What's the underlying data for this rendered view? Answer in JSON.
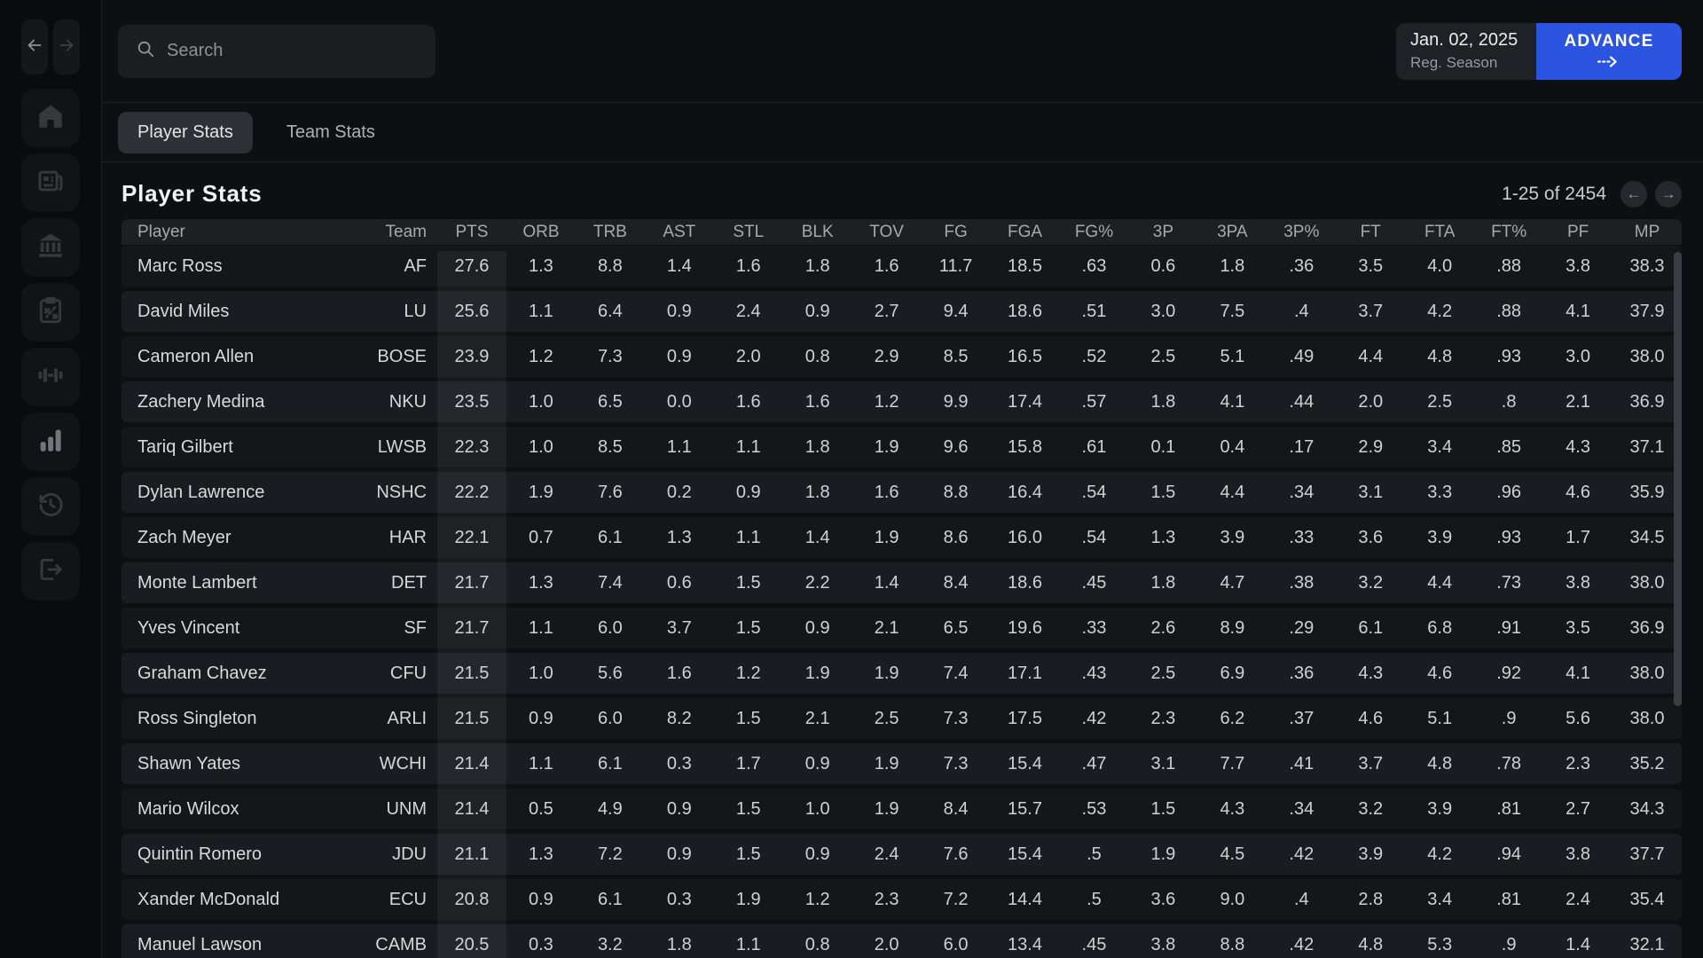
{
  "topbar": {
    "search_placeholder": "Search",
    "date": "Jan. 02, 2025",
    "phase": "Reg. Season",
    "advance_label": "ADVANCE"
  },
  "sidebar": {
    "icons": [
      "back-arrow",
      "forward-arrow",
      "home",
      "news",
      "league",
      "playbook",
      "training",
      "stats",
      "history",
      "exit"
    ]
  },
  "tabs": [
    {
      "label": "Player Stats",
      "active": true
    },
    {
      "label": "Team Stats",
      "active": false
    }
  ],
  "page": {
    "title": "Player Stats",
    "pagination": "1-25 of 2454",
    "prev_icon": "←",
    "next_icon": "→"
  },
  "colors": {
    "accent_blue": "#2b55e0",
    "row_odd": "#15161a",
    "row_even": "#1b1c21",
    "header_bg": "#1d1f23"
  },
  "table": {
    "columns": [
      "Player",
      "Team",
      "PTS",
      "ORB",
      "TRB",
      "AST",
      "STL",
      "BLK",
      "TOV",
      "FG",
      "FGA",
      "FG%",
      "3P",
      "3PA",
      "3P%",
      "FT",
      "FTA",
      "FT%",
      "PF",
      "MP"
    ],
    "highlight_column": "PTS",
    "rows": [
      [
        "Marc Ross",
        "AF",
        "27.6",
        "1.3",
        "8.8",
        "1.4",
        "1.6",
        "1.8",
        "1.6",
        "11.7",
        "18.5",
        ".63",
        "0.6",
        "1.8",
        ".36",
        "3.5",
        "4.0",
        ".88",
        "3.8",
        "38.3"
      ],
      [
        "David Miles",
        "LU",
        "25.6",
        "1.1",
        "6.4",
        "0.9",
        "2.4",
        "0.9",
        "2.7",
        "9.4",
        "18.6",
        ".51",
        "3.0",
        "7.5",
        ".4",
        "3.7",
        "4.2",
        ".88",
        "4.1",
        "37.9"
      ],
      [
        "Cameron Allen",
        "BOSE",
        "23.9",
        "1.2",
        "7.3",
        "0.9",
        "2.0",
        "0.8",
        "2.9",
        "8.5",
        "16.5",
        ".52",
        "2.5",
        "5.1",
        ".49",
        "4.4",
        "4.8",
        ".93",
        "3.0",
        "38.0"
      ],
      [
        "Zachery Medina",
        "NKU",
        "23.5",
        "1.0",
        "6.5",
        "0.0",
        "1.6",
        "1.6",
        "1.2",
        "9.9",
        "17.4",
        ".57",
        "1.8",
        "4.1",
        ".44",
        "2.0",
        "2.5",
        ".8",
        "2.1",
        "36.9"
      ],
      [
        "Tariq Gilbert",
        "LWSB",
        "22.3",
        "1.0",
        "8.5",
        "1.1",
        "1.1",
        "1.8",
        "1.9",
        "9.6",
        "15.8",
        ".61",
        "0.1",
        "0.4",
        ".17",
        "2.9",
        "3.4",
        ".85",
        "4.3",
        "37.1"
      ],
      [
        "Dylan Lawrence",
        "NSHC",
        "22.2",
        "1.9",
        "7.6",
        "0.2",
        "0.9",
        "1.8",
        "1.6",
        "8.8",
        "16.4",
        ".54",
        "1.5",
        "4.4",
        ".34",
        "3.1",
        "3.3",
        ".96",
        "4.6",
        "35.9"
      ],
      [
        "Zach Meyer",
        "HAR",
        "22.1",
        "0.7",
        "6.1",
        "1.3",
        "1.1",
        "1.4",
        "1.9",
        "8.6",
        "16.0",
        ".54",
        "1.3",
        "3.9",
        ".33",
        "3.6",
        "3.9",
        ".93",
        "1.7",
        "34.5"
      ],
      [
        "Monte Lambert",
        "DET",
        "21.7",
        "1.3",
        "7.4",
        "0.6",
        "1.5",
        "2.2",
        "1.4",
        "8.4",
        "18.6",
        ".45",
        "1.8",
        "4.7",
        ".38",
        "3.2",
        "4.4",
        ".73",
        "3.8",
        "38.0"
      ],
      [
        "Yves Vincent",
        "SF",
        "21.7",
        "1.1",
        "6.0",
        "3.7",
        "1.5",
        "0.9",
        "2.1",
        "6.5",
        "19.6",
        ".33",
        "2.6",
        "8.9",
        ".29",
        "6.1",
        "6.8",
        ".91",
        "3.5",
        "36.9"
      ],
      [
        "Graham Chavez",
        "CFU",
        "21.5",
        "1.0",
        "5.6",
        "1.6",
        "1.2",
        "1.9",
        "1.9",
        "7.4",
        "17.1",
        ".43",
        "2.5",
        "6.9",
        ".36",
        "4.3",
        "4.6",
        ".92",
        "4.1",
        "38.0"
      ],
      [
        "Ross Singleton",
        "ARLI",
        "21.5",
        "0.9",
        "6.0",
        "8.2",
        "1.5",
        "2.1",
        "2.5",
        "7.3",
        "17.5",
        ".42",
        "2.3",
        "6.2",
        ".37",
        "4.6",
        "5.1",
        ".9",
        "5.6",
        "38.0"
      ],
      [
        "Shawn Yates",
        "WCHI",
        "21.4",
        "1.1",
        "6.1",
        "0.3",
        "1.7",
        "0.9",
        "1.9",
        "7.3",
        "15.4",
        ".47",
        "3.1",
        "7.7",
        ".41",
        "3.7",
        "4.8",
        ".78",
        "2.3",
        "35.2"
      ],
      [
        "Mario Wilcox",
        "UNM",
        "21.4",
        "0.5",
        "4.9",
        "0.9",
        "1.5",
        "1.0",
        "1.9",
        "8.4",
        "15.7",
        ".53",
        "1.5",
        "4.3",
        ".34",
        "3.2",
        "3.9",
        ".81",
        "2.7",
        "34.3"
      ],
      [
        "Quintin Romero",
        "JDU",
        "21.1",
        "1.3",
        "7.2",
        "0.9",
        "1.5",
        "0.9",
        "2.4",
        "7.6",
        "15.4",
        ".5",
        "1.9",
        "4.5",
        ".42",
        "3.9",
        "4.2",
        ".94",
        "3.8",
        "37.7"
      ],
      [
        "Xander McDonald",
        "ECU",
        "20.8",
        "0.9",
        "6.1",
        "0.3",
        "1.9",
        "1.2",
        "2.3",
        "7.2",
        "14.4",
        ".5",
        "3.6",
        "9.0",
        ".4",
        "2.8",
        "3.4",
        ".81",
        "2.4",
        "35.4"
      ],
      [
        "Manuel Lawson",
        "CAMB",
        "20.5",
        "0.3",
        "3.2",
        "1.8",
        "1.1",
        "0.8",
        "2.0",
        "6.0",
        "13.4",
        ".45",
        "3.8",
        "8.8",
        ".42",
        "4.8",
        "5.3",
        ".9",
        "1.4",
        "32.1"
      ]
    ]
  }
}
